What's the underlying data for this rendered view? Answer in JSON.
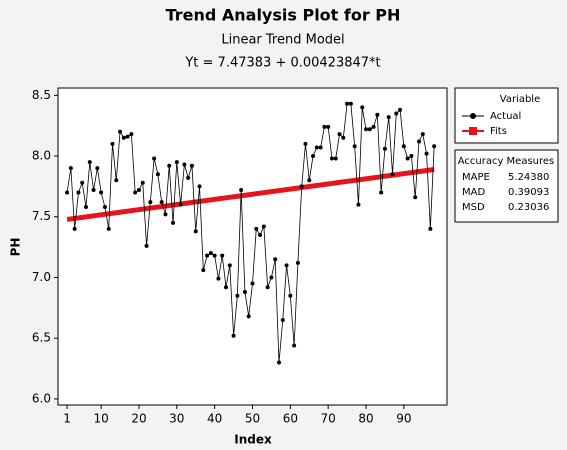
{
  "chart_data": {
    "type": "line",
    "title": "Trend Analysis Plot for PH",
    "subtitle": "Linear Trend Model",
    "equation": "Yt = 7.47383 + 0.00423847*t",
    "x_label": "Index",
    "y_label": "PH",
    "xlim": [
      -1.4,
      101.4
    ],
    "ylim": [
      5.95,
      8.56
    ],
    "xticks": [
      1,
      10,
      20,
      30,
      40,
      50,
      60,
      70,
      80,
      90
    ],
    "yticks": [
      {
        "value": 6,
        "label": "6.0"
      },
      6.5,
      {
        "value": 7,
        "label": "7.0"
      },
      7.5,
      {
        "value": 8,
        "label": "8.0"
      },
      8.5
    ],
    "legend_title": "Variable",
    "series": [
      {
        "name": "Actual",
        "color": "#000000",
        "x": [
          1,
          2,
          3,
          4,
          5,
          6,
          7,
          8,
          9,
          10,
          11,
          12,
          13,
          14,
          15,
          16,
          17,
          18,
          19,
          20,
          21,
          22,
          23,
          24,
          25,
          26,
          27,
          28,
          29,
          30,
          31,
          32,
          33,
          34,
          35,
          36,
          37,
          38,
          39,
          40,
          41,
          42,
          43,
          44,
          45,
          46,
          47,
          48,
          49,
          50,
          51,
          52,
          53,
          54,
          55,
          56,
          57,
          58,
          59,
          60,
          61,
          62,
          63,
          64,
          65,
          66,
          67,
          68,
          69,
          70,
          71,
          72,
          73,
          74,
          75,
          76,
          77,
          78,
          79,
          80,
          81,
          82,
          83,
          84,
          85,
          86,
          87,
          88,
          89,
          90,
          91,
          92,
          93,
          94,
          95,
          96,
          97,
          98
        ],
        "values": [
          7.7,
          7.9,
          7.4,
          7.7,
          7.78,
          7.58,
          7.95,
          7.72,
          7.9,
          7.7,
          7.58,
          7.4,
          8.1,
          7.8,
          8.2,
          8.15,
          8.16,
          8.18,
          7.7,
          7.72,
          7.78,
          7.26,
          7.62,
          7.98,
          7.85,
          7.62,
          7.52,
          7.92,
          7.45,
          7.95,
          7.6,
          7.93,
          7.82,
          7.92,
          7.38,
          7.75,
          7.06,
          7.18,
          7.2,
          7.18,
          6.99,
          7.18,
          6.92,
          7.1,
          6.52,
          6.85,
          7.72,
          6.88,
          6.68,
          6.95,
          7.4,
          7.35,
          7.42,
          6.92,
          7.0,
          7.15,
          6.3,
          6.65,
          7.1,
          6.85,
          6.44,
          7.12,
          7.75,
          8.1,
          7.8,
          8.0,
          8.07,
          8.07,
          8.24,
          8.24,
          7.98,
          7.98,
          8.18,
          8.15,
          8.43,
          8.43,
          8.08,
          7.6,
          8.4,
          8.22,
          8.22,
          8.24,
          8.34,
          7.7,
          8.06,
          8.32,
          7.85,
          8.35,
          8.38,
          8.08,
          7.98,
          8.0,
          7.66,
          8.12,
          8.18,
          8.02,
          7.4,
          8.08
        ]
      },
      {
        "name": "Fits",
        "color": "#e8141c",
        "x": [
          1,
          98
        ],
        "values": [
          7.478,
          7.889
        ]
      }
    ],
    "accuracy": {
      "title": "Accuracy Measures",
      "rows": [
        [
          "MAPE",
          "5.24380"
        ],
        [
          "MAD",
          "0.39093"
        ],
        [
          "MSD",
          "0.23036"
        ]
      ]
    }
  }
}
